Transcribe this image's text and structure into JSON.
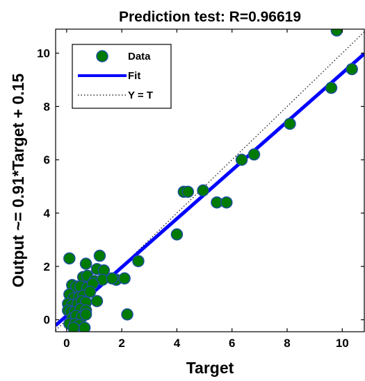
{
  "chart_data": {
    "type": "scatter",
    "title": "Prediction test: R=0.96619",
    "xlabel": "Target",
    "ylabel": "Output ~= 0.91*Target + 0.15",
    "xlim": [
      -0.4,
      10.8
    ],
    "ylim": [
      -0.45,
      10.9
    ],
    "xticks": [
      0,
      2,
      4,
      6,
      8,
      10
    ],
    "yticks": [
      0,
      2,
      4,
      6,
      8,
      10
    ],
    "legend_position": "top-left",
    "grid": false,
    "colors": {
      "data_fill": "#007a00",
      "data_edge": "#1e4fa0",
      "fit": "#0000ff",
      "identity": "#000000"
    },
    "series": [
      {
        "name": "Data",
        "style": "markers",
        "points": [
          [
            0.1,
            2.3
          ],
          [
            0.7,
            2.1
          ],
          [
            1.2,
            2.4
          ],
          [
            0.6,
            1.6
          ],
          [
            0.75,
            1.65
          ],
          [
            1.1,
            1.9
          ],
          [
            1.35,
            1.85
          ],
          [
            1.0,
            1.45
          ],
          [
            1.3,
            1.5
          ],
          [
            1.8,
            1.5
          ],
          [
            2.1,
            1.55
          ],
          [
            1.65,
            1.55
          ],
          [
            0.2,
            1.3
          ],
          [
            0.35,
            1.25
          ],
          [
            0.5,
            1.25
          ],
          [
            0.75,
            1.2
          ],
          [
            0.95,
            1.35
          ],
          [
            0.1,
            0.95
          ],
          [
            0.25,
            0.8
          ],
          [
            0.45,
            0.85
          ],
          [
            0.6,
            0.9
          ],
          [
            0.85,
            1.05
          ],
          [
            1.1,
            0.7
          ],
          [
            0.05,
            0.6
          ],
          [
            0.2,
            0.55
          ],
          [
            0.4,
            0.6
          ],
          [
            0.55,
            0.7
          ],
          [
            0.7,
            0.65
          ],
          [
            0.05,
            0.35
          ],
          [
            0.15,
            0.3
          ],
          [
            0.3,
            0.3
          ],
          [
            0.5,
            0.4
          ],
          [
            0.7,
            0.35
          ],
          [
            0.2,
            0.05
          ],
          [
            0.35,
            0.15
          ],
          [
            0.55,
            0.1
          ],
          [
            0.7,
            0.2
          ],
          [
            0.1,
            -0.15
          ],
          [
            0.3,
            -0.15
          ],
          [
            0.45,
            -0.2
          ],
          [
            0.25,
            -0.3
          ],
          [
            0.65,
            -0.3
          ],
          [
            2.2,
            0.2
          ],
          [
            2.6,
            2.2
          ],
          [
            4.0,
            3.2
          ],
          [
            4.25,
            4.8
          ],
          [
            4.4,
            4.8
          ],
          [
            4.95,
            4.85
          ],
          [
            5.45,
            4.4
          ],
          [
            5.8,
            4.4
          ],
          [
            6.35,
            6.0
          ],
          [
            6.8,
            6.2
          ],
          [
            8.1,
            7.35
          ],
          [
            9.6,
            8.7
          ],
          [
            10.35,
            9.4
          ],
          [
            9.8,
            10.85
          ]
        ]
      },
      {
        "name": "Fit",
        "style": "line",
        "slope": 0.91,
        "intercept": 0.15
      },
      {
        "name": "Y = T",
        "style": "dotted",
        "slope": 1,
        "intercept": 0
      }
    ]
  }
}
